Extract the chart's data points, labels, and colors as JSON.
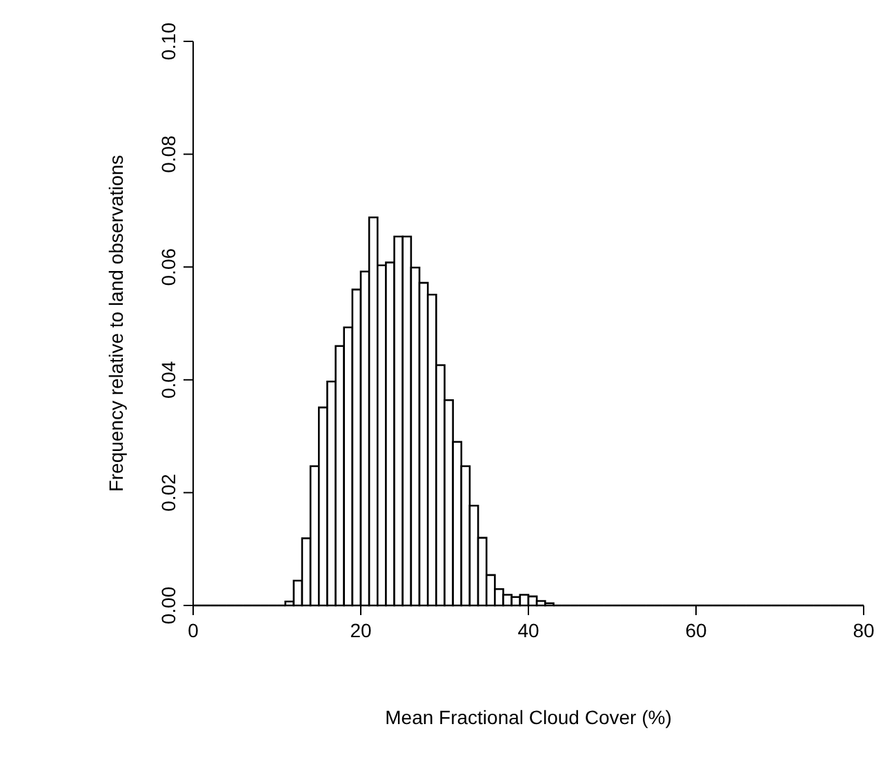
{
  "chart_data": {
    "type": "histogram",
    "xlabel": "Mean Fractional Cloud Cover (%)",
    "ylabel": "Frequency relative to land observations",
    "bins": [
      0,
      1,
      2,
      3,
      4,
      5,
      6,
      7,
      8,
      9,
      10,
      11,
      12,
      13,
      14,
      15,
      16,
      17,
      18,
      19,
      20,
      21,
      22,
      23,
      24,
      25,
      26,
      27,
      28,
      29,
      30,
      31,
      32,
      33,
      34,
      35,
      36,
      37,
      38,
      39,
      40,
      41,
      42,
      43,
      44,
      45,
      46,
      47,
      48,
      49,
      50,
      51,
      52,
      53,
      54,
      55,
      56,
      57,
      58,
      59,
      60,
      61,
      62,
      63,
      64,
      65,
      66,
      67,
      68,
      69,
      70,
      71,
      72,
      73,
      74,
      75,
      76,
      77,
      78,
      79,
      80
    ],
    "values": [
      0,
      0,
      0,
      0,
      0,
      0,
      0,
      0,
      0,
      0,
      0,
      0.0007,
      0.0044,
      0.0119,
      0.0247,
      0.0351,
      0.0397,
      0.046,
      0.0493,
      0.056,
      0.0592,
      0.0688,
      0.0603,
      0.0608,
      0.0654,
      0.0654,
      0.0599,
      0.0572,
      0.0551,
      0.0426,
      0.0364,
      0.029,
      0.0247,
      0.0177,
      0.012,
      0.0054,
      0.0029,
      0.0019,
      0.0015,
      0.0019,
      0.0016,
      0.0008,
      0.0004,
      0,
      0,
      0,
      0,
      0,
      0,
      0,
      0,
      0,
      0,
      0,
      0,
      0,
      0,
      0,
      0,
      0,
      0,
      0,
      0,
      0,
      0,
      0,
      0,
      0,
      0,
      0,
      0,
      0,
      0,
      0,
      0,
      0,
      0,
      0,
      0,
      0
    ],
    "color": "#ffffff",
    "xlim": [
      0,
      80
    ],
    "xticks": [
      0,
      20,
      40,
      60,
      80
    ],
    "ylim": [
      0,
      0.1
    ],
    "yticks": [
      {
        "value": 0,
        "label": "0.00"
      },
      {
        "value": 0.02,
        "label": "0.02"
      },
      {
        "value": 0.04,
        "label": "0.04"
      },
      {
        "value": 0.06,
        "label": "0.06"
      },
      {
        "value": 0.08,
        "label": "0.08"
      },
      {
        "value": 0.1,
        "label": "0.10"
      }
    ],
    "grid": false
  }
}
